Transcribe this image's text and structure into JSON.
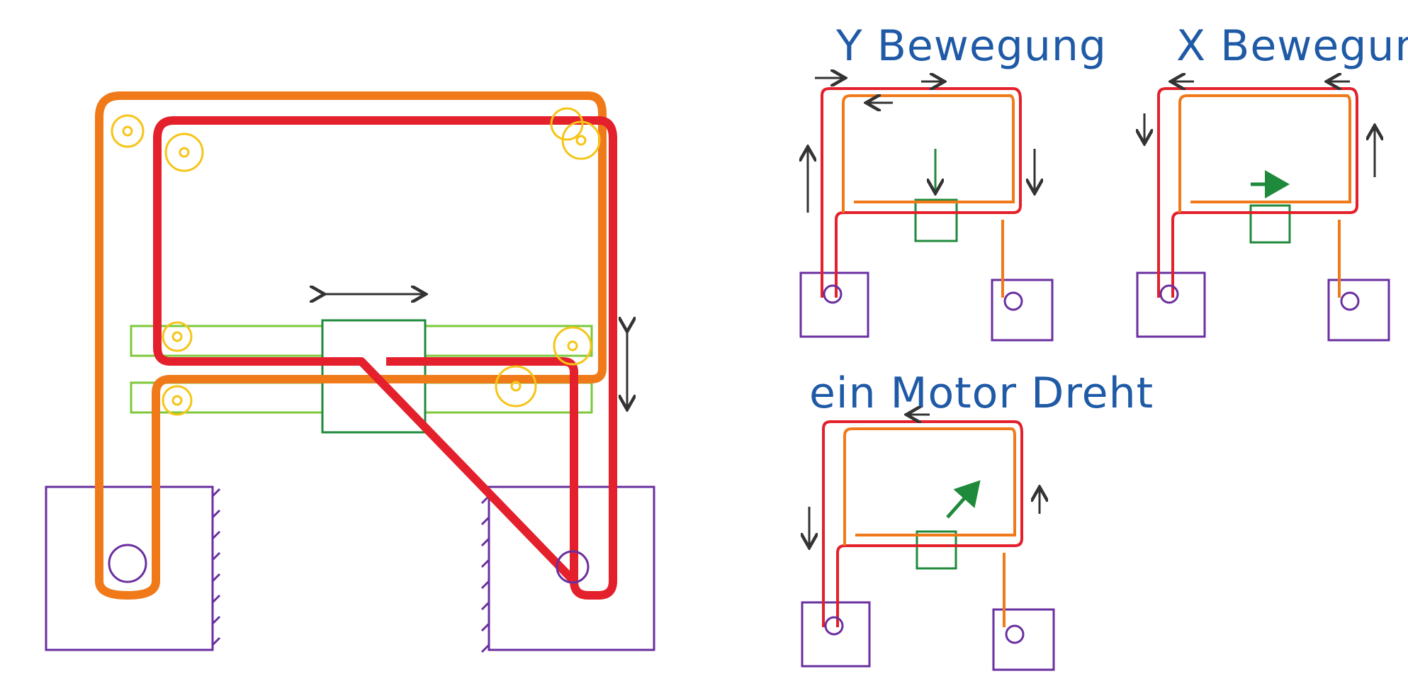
{
  "labels": {
    "y_bewegung": "Y Bewegung",
    "x_bewegung": "X Bewegung",
    "ein_motor": "ein Motor Dreht"
  },
  "colors": {
    "belt_a": "#f07a1a",
    "belt_b": "#e3202b",
    "pulley": "#f5c518",
    "carriage": "#1f8a3b",
    "rail": "#7cc83a",
    "motor": "#6a2fa0",
    "arrow": "#333333",
    "text": "#1f5aa6"
  }
}
